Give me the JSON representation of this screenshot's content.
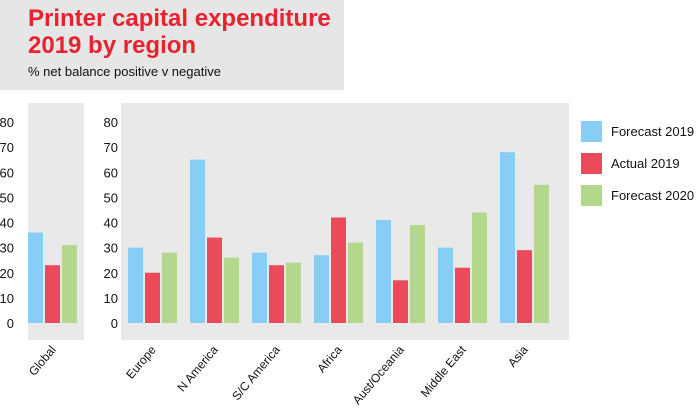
{
  "header": {
    "title_line1": "Printer capital expenditure",
    "title_line2": "2019 by region",
    "subtitle": "% net balance positive v negative"
  },
  "chart_data": {
    "type": "bar",
    "title": "Printer capital expenditure 2019 by region",
    "subtitle": "% net balance positive v negative",
    "ylim": [
      0,
      80
    ],
    "yticks": [
      0,
      10,
      20,
      30,
      40,
      50,
      60,
      70,
      80
    ],
    "grid": false,
    "legend_position": "right",
    "panels": [
      {
        "name": "global-panel",
        "categories": [
          "Global"
        ],
        "series": [
          {
            "name": "Forecast 2019",
            "values": [
              36
            ]
          },
          {
            "name": "Actual 2019",
            "values": [
              23
            ]
          },
          {
            "name": "Forecast 2020",
            "values": [
              31
            ]
          }
        ]
      },
      {
        "name": "regions-panel",
        "categories": [
          "Europe",
          "N America",
          "S/C America",
          "Africa",
          "Aust/Oceania",
          "Middle East",
          "Asia"
        ],
        "series": [
          {
            "name": "Forecast 2019",
            "values": [
              30,
              65,
              28,
              27,
              41,
              30,
              68
            ]
          },
          {
            "name": "Actual 2019",
            "values": [
              20,
              34,
              23,
              42,
              17,
              22,
              29
            ]
          },
          {
            "name": "Forecast 2020",
            "values": [
              28,
              26,
              24,
              32,
              39,
              44,
              55
            ]
          }
        ]
      }
    ],
    "colors": {
      "Forecast 2019": "#87cdf5",
      "Actual 2019": "#ea4a5a",
      "Forecast 2020": "#b3d88c",
      "panel_background": "#e9e9e9"
    }
  }
}
